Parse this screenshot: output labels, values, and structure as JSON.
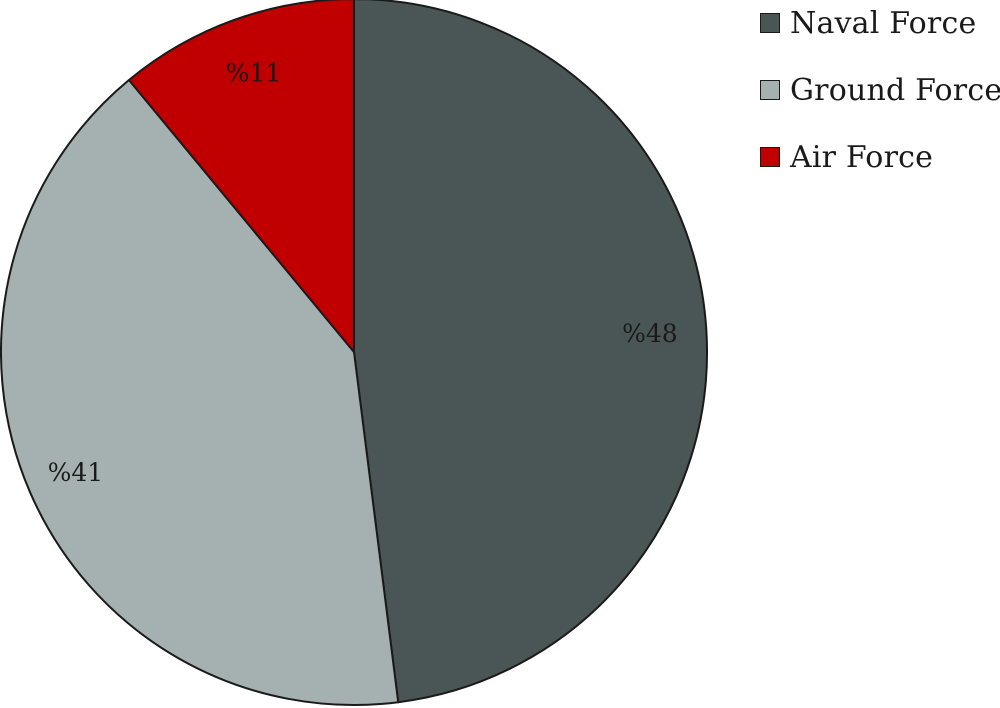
{
  "chart_data": {
    "type": "pie",
    "slices": [
      {
        "name": "Naval Force",
        "value": 48,
        "label": "%48",
        "color": "#4a5555"
      },
      {
        "name": "Ground Force",
        "value": 41,
        "label": "%41",
        "color": "#a5b1b0"
      },
      {
        "name": "Air Force",
        "value": 11,
        "label": "%11",
        "color": "#c00000"
      }
    ],
    "start_angle_deg": 0,
    "direction": "clockwise",
    "legend_position": "top-right"
  }
}
